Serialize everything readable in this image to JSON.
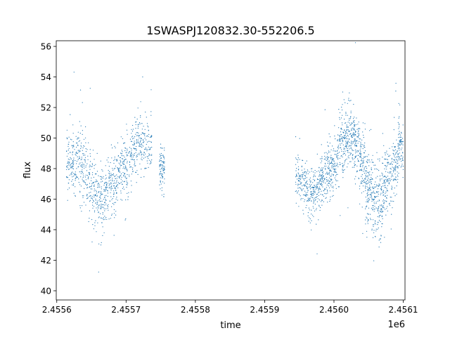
{
  "chart_data": {
    "type": "scatter",
    "title": "1SWASPJ120832.30-552206.5",
    "xlabel": "time",
    "ylabel": "flux",
    "x_offset_label": "1e6",
    "xlim": [
      2455599.25,
      2456102.5
    ],
    "ylim": [
      39.4,
      56.37
    ],
    "x_ticks": [
      2455600,
      2455700,
      2455800,
      2455900,
      2456000,
      2456100
    ],
    "x_tick_labels": [
      "2.4556",
      "2.4557",
      "2.4558",
      "2.4559",
      "2.4560",
      "2.4561"
    ],
    "y_ticks": [
      40,
      42,
      44,
      46,
      48,
      50,
      52,
      54,
      56
    ],
    "y_tick_labels": [
      "40",
      "42",
      "44",
      "46",
      "48",
      "50",
      "52",
      "54",
      "56"
    ],
    "grid": false,
    "marker_color": "#1f77b4",
    "note_segments_format": "[time_start, time_end, flux_mean_start, flux_mean_end, flux_spread, n_points]",
    "segments": [
      [
        2455613.9,
        2455626.8,
        48.5,
        48.5,
        1.0,
        110
      ],
      [
        2455626.8,
        2455640.8,
        48.5,
        48.0,
        1.1,
        110
      ],
      [
        2455640.8,
        2455656.9,
        47.5,
        46.5,
        1.1,
        130
      ],
      [
        2455656.9,
        2455669.7,
        46.0,
        46.0,
        1.0,
        110
      ],
      [
        2455669.7,
        2455686.9,
        46.5,
        47.0,
        1.0,
        150
      ],
      [
        2455686.9,
        2455708.4,
        47.5,
        48.5,
        1.0,
        170
      ],
      [
        2455708.4,
        2455721.2,
        49.0,
        50.0,
        1.0,
        100
      ],
      [
        2455721.2,
        2455737.3,
        49.5,
        49.5,
        0.9,
        110
      ],
      [
        2455748.1,
        2455755.6,
        48.0,
        48.0,
        0.8,
        90
      ],
      [
        2455944.4,
        2455959.5,
        47.5,
        47.0,
        0.8,
        110
      ],
      [
        2455959.5,
        2455978.8,
        46.5,
        46.5,
        0.8,
        170
      ],
      [
        2455978.8,
        2455991.6,
        47.0,
        47.5,
        0.9,
        130
      ],
      [
        2455991.6,
        2456006.7,
        48.0,
        48.5,
        1.0,
        150
      ],
      [
        2456006.7,
        2456021.7,
        49.5,
        50.0,
        1.0,
        160
      ],
      [
        2456021.7,
        2456034.6,
        50.0,
        49.5,
        1.0,
        150
      ],
      [
        2456034.6,
        2456045.3,
        49.0,
        48.0,
        1.1,
        120
      ],
      [
        2456045.3,
        2456056.0,
        47.0,
        46.5,
        1.2,
        140
      ],
      [
        2456056.0,
        2456071.0,
        46.0,
        46.0,
        1.3,
        160
      ],
      [
        2456071.0,
        2456083.9,
        47.0,
        47.5,
        1.1,
        120
      ],
      [
        2456083.9,
        2456092.5,
        48.0,
        48.5,
        1.0,
        90
      ],
      [
        2456092.5,
        2456100.0,
        49.5,
        49.5,
        0.9,
        80
      ]
    ]
  }
}
